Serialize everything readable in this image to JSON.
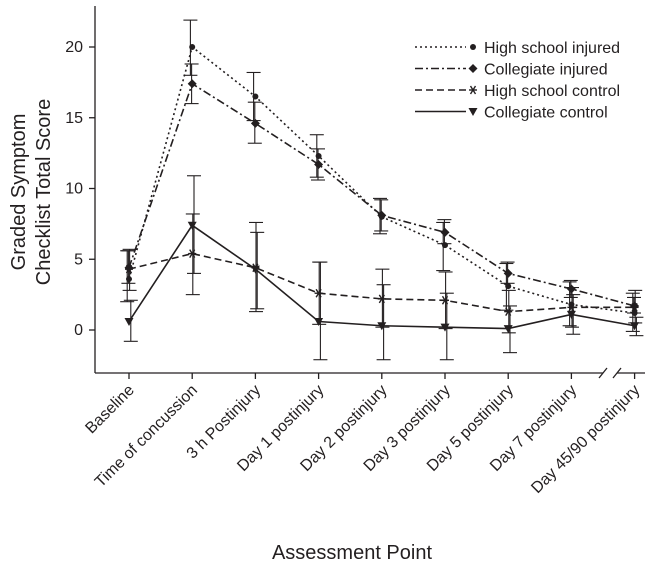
{
  "chart_data": {
    "type": "line",
    "title": "",
    "xlabel": "Assessment Point",
    "ylabel_lines": [
      "Graded Symptom",
      "Checklist Total Score"
    ],
    "ylim": [
      -1.5,
      22
    ],
    "yticks": [
      0,
      5,
      10,
      15,
      20
    ],
    "grid": false,
    "legend_position": "top-right",
    "axis_break_after": "Day 7 postinjury",
    "categories": [
      "Baseline",
      "Time of concussion",
      "3 h Postinjury",
      "Day 1 postinjury",
      "Day 2 postinjury",
      "Day 3 postinjury",
      "Day 5 postinjury",
      "Day 7 postinjury",
      "Day 45/90 postinjury"
    ],
    "series": [
      {
        "name": "High school injured",
        "dash": "dotted",
        "marker": "circle",
        "values": [
          3.6,
          20.0,
          16.5,
          12.3,
          8.0,
          6.0,
          3.1,
          1.8,
          1.2
        ],
        "err_low": [
          2.0,
          18.0,
          14.8,
          10.8,
          6.8,
          4.2,
          1.4,
          0.3,
          -0.1
        ],
        "err_high": [
          5.6,
          21.9,
          18.2,
          13.8,
          9.3,
          7.6,
          4.7,
          3.4,
          2.6
        ]
      },
      {
        "name": "Collegiate injured",
        "dash": "dashdot",
        "marker": "diamond",
        "values": [
          4.4,
          17.4,
          14.6,
          11.7,
          8.1,
          6.9,
          4.0,
          2.9,
          1.7
        ],
        "err_low": [
          3.3,
          16.0,
          13.2,
          10.6,
          7.0,
          6.1,
          3.3,
          2.3,
          1.2
        ],
        "err_high": [
          5.6,
          18.8,
          16.1,
          12.8,
          9.2,
          7.8,
          4.8,
          3.5,
          2.3
        ]
      },
      {
        "name": "High school control",
        "dash": "dashed",
        "marker": "asterisk",
        "values": [
          4.3,
          5.4,
          4.4,
          2.6,
          2.2,
          2.1,
          1.3,
          1.6,
          1.6
        ],
        "err_low": [
          2.8,
          2.5,
          1.3,
          0.4,
          0.2,
          0.1,
          -0.2,
          0.2,
          0.5
        ],
        "err_high": [
          5.7,
          8.2,
          7.6,
          4.8,
          4.3,
          4.1,
          2.8,
          3.0,
          2.8
        ]
      },
      {
        "name": "Collegiate control",
        "dash": "solid",
        "marker": "triangle-down",
        "values": [
          0.6,
          7.4,
          4.3,
          0.6,
          0.3,
          0.2,
          0.1,
          1.1,
          0.3
        ],
        "err_low": [
          -0.8,
          4.0,
          1.5,
          -2.1,
          -2.1,
          -2.1,
          -1.6,
          -0.3,
          -0.4
        ],
        "err_high": [
          2.1,
          10.9,
          6.9,
          4.8,
          3.2,
          2.6,
          1.7,
          2.5,
          0.9
        ]
      }
    ]
  }
}
